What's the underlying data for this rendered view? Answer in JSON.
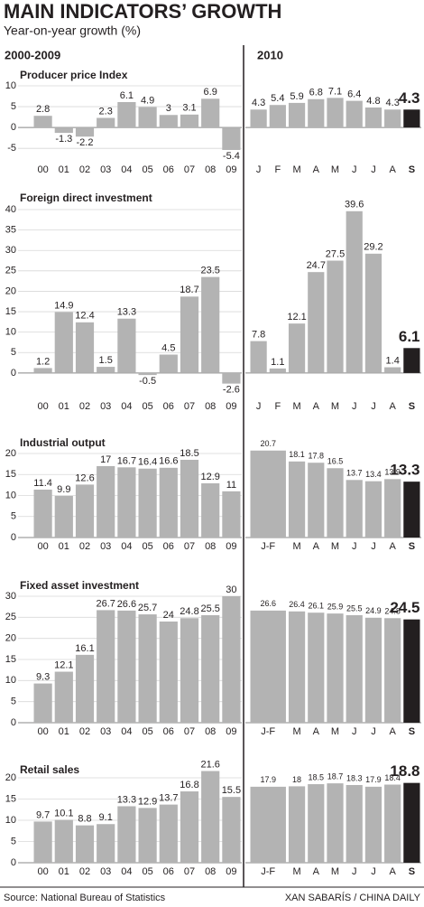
{
  "title": "MAIN INDICATORS’ GROWTH",
  "subtitle": "Year-on-year growth (%)",
  "periods": [
    "2000-2009",
    "2010"
  ],
  "source": "Source: National Bureau of Statistics",
  "credit": "XAN SABARÍS / CHINA DAILY",
  "chart_data": [
    {
      "type": "bar",
      "title": "Producer price Index",
      "categories": [
        "00",
        "01",
        "02",
        "03",
        "04",
        "05",
        "06",
        "07",
        "08",
        "09"
      ],
      "values": [
        2.8,
        -1.3,
        -2.2,
        2.3,
        6.1,
        4.9,
        3,
        3.1,
        6.9,
        -5.4
      ],
      "ylim": [
        -8,
        10
      ],
      "yticks": [
        -5,
        0,
        5,
        10
      ],
      "grid": true,
      "color": "#b3b3b3"
    },
    {
      "type": "bar",
      "categories": [
        "J",
        "F",
        "M",
        "A",
        "M",
        "J",
        "J",
        "A",
        "S"
      ],
      "values": [
        4.3,
        5.4,
        5.9,
        6.8,
        7.1,
        6.4,
        4.8,
        4.3,
        4.3
      ],
      "ylim": [
        -8,
        10
      ],
      "color": "#b3b3b3",
      "highlight_color": "#231f20"
    },
    {
      "type": "bar",
      "title": "Foreign direct investment",
      "categories": [
        "00",
        "01",
        "02",
        "03",
        "04",
        "05",
        "06",
        "07",
        "08",
        "09"
      ],
      "values": [
        1.2,
        14.9,
        12.4,
        1.5,
        13.3,
        -0.5,
        4.5,
        18.7,
        23.5,
        -2.6
      ],
      "ylim": [
        -6,
        40
      ],
      "yticks": [
        0,
        5,
        10,
        15,
        20,
        25,
        30,
        35,
        40
      ],
      "grid": true,
      "color": "#b3b3b3"
    },
    {
      "type": "bar",
      "categories": [
        "J",
        "F",
        "M",
        "A",
        "M",
        "J",
        "J",
        "A",
        "S"
      ],
      "values": [
        7.8,
        1.1,
        12.1,
        24.7,
        27.5,
        39.6,
        29.2,
        1.4,
        6.1
      ],
      "ylim": [
        -6,
        40
      ],
      "color": "#b3b3b3",
      "highlight_color": "#231f20"
    },
    {
      "type": "bar",
      "title": "Industrial output",
      "categories": [
        "00",
        "01",
        "02",
        "03",
        "04",
        "05",
        "06",
        "07",
        "08",
        "09"
      ],
      "values": [
        11.4,
        9.9,
        12.6,
        17,
        16.7,
        16.4,
        16.6,
        18.5,
        12.9,
        11
      ],
      "ylim": [
        0,
        20
      ],
      "yticks": [
        0,
        5,
        10,
        15,
        20
      ],
      "grid": true,
      "color": "#b3b3b3"
    },
    {
      "type": "bar",
      "categories": [
        "J-F",
        "M",
        "A",
        "M",
        "J",
        "J",
        "A",
        "S"
      ],
      "values": [
        20.7,
        18.1,
        17.8,
        16.5,
        13.7,
        13.4,
        13.9,
        13.3
      ],
      "ylim": [
        0,
        20
      ],
      "color": "#b3b3b3",
      "highlight_color": "#231f20"
    },
    {
      "type": "bar",
      "title": "Fixed asset investment",
      "categories": [
        "00",
        "01",
        "02",
        "03",
        "04",
        "05",
        "06",
        "07",
        "08",
        "09"
      ],
      "values": [
        9.3,
        12.1,
        16.1,
        26.7,
        26.6,
        25.7,
        24,
        24.8,
        25.5,
        30
      ],
      "ylim": [
        0,
        30
      ],
      "yticks": [
        0,
        5,
        10,
        15,
        20,
        25,
        30
      ],
      "grid": true,
      "color": "#b3b3b3"
    },
    {
      "type": "bar",
      "categories": [
        "J-F",
        "M",
        "A",
        "M",
        "J",
        "J",
        "A",
        "S"
      ],
      "values": [
        26.6,
        26.4,
        26.1,
        25.9,
        25.5,
        24.9,
        24.8,
        24.5
      ],
      "ylim": [
        0,
        30
      ],
      "color": "#b3b3b3",
      "highlight_color": "#231f20"
    },
    {
      "type": "bar",
      "title": "Retail sales",
      "categories": [
        "00",
        "01",
        "02",
        "03",
        "04",
        "05",
        "06",
        "07",
        "08",
        "09"
      ],
      "values": [
        9.7,
        10.1,
        8.8,
        9.1,
        13.3,
        12.9,
        13.7,
        16.8,
        21.6,
        15.5
      ],
      "ylim": [
        0,
        20
      ],
      "yticks": [
        0,
        5,
        10,
        15,
        20
      ],
      "grid": true,
      "color": "#b3b3b3"
    },
    {
      "type": "bar",
      "categories": [
        "J-F",
        "M",
        "A",
        "M",
        "J",
        "J",
        "A",
        "S"
      ],
      "values": [
        17.9,
        18,
        18.5,
        18.7,
        18.3,
        17.9,
        18.4,
        18.8
      ],
      "ylim": [
        0,
        20
      ],
      "color": "#b3b3b3",
      "highlight_color": "#231f20"
    }
  ]
}
